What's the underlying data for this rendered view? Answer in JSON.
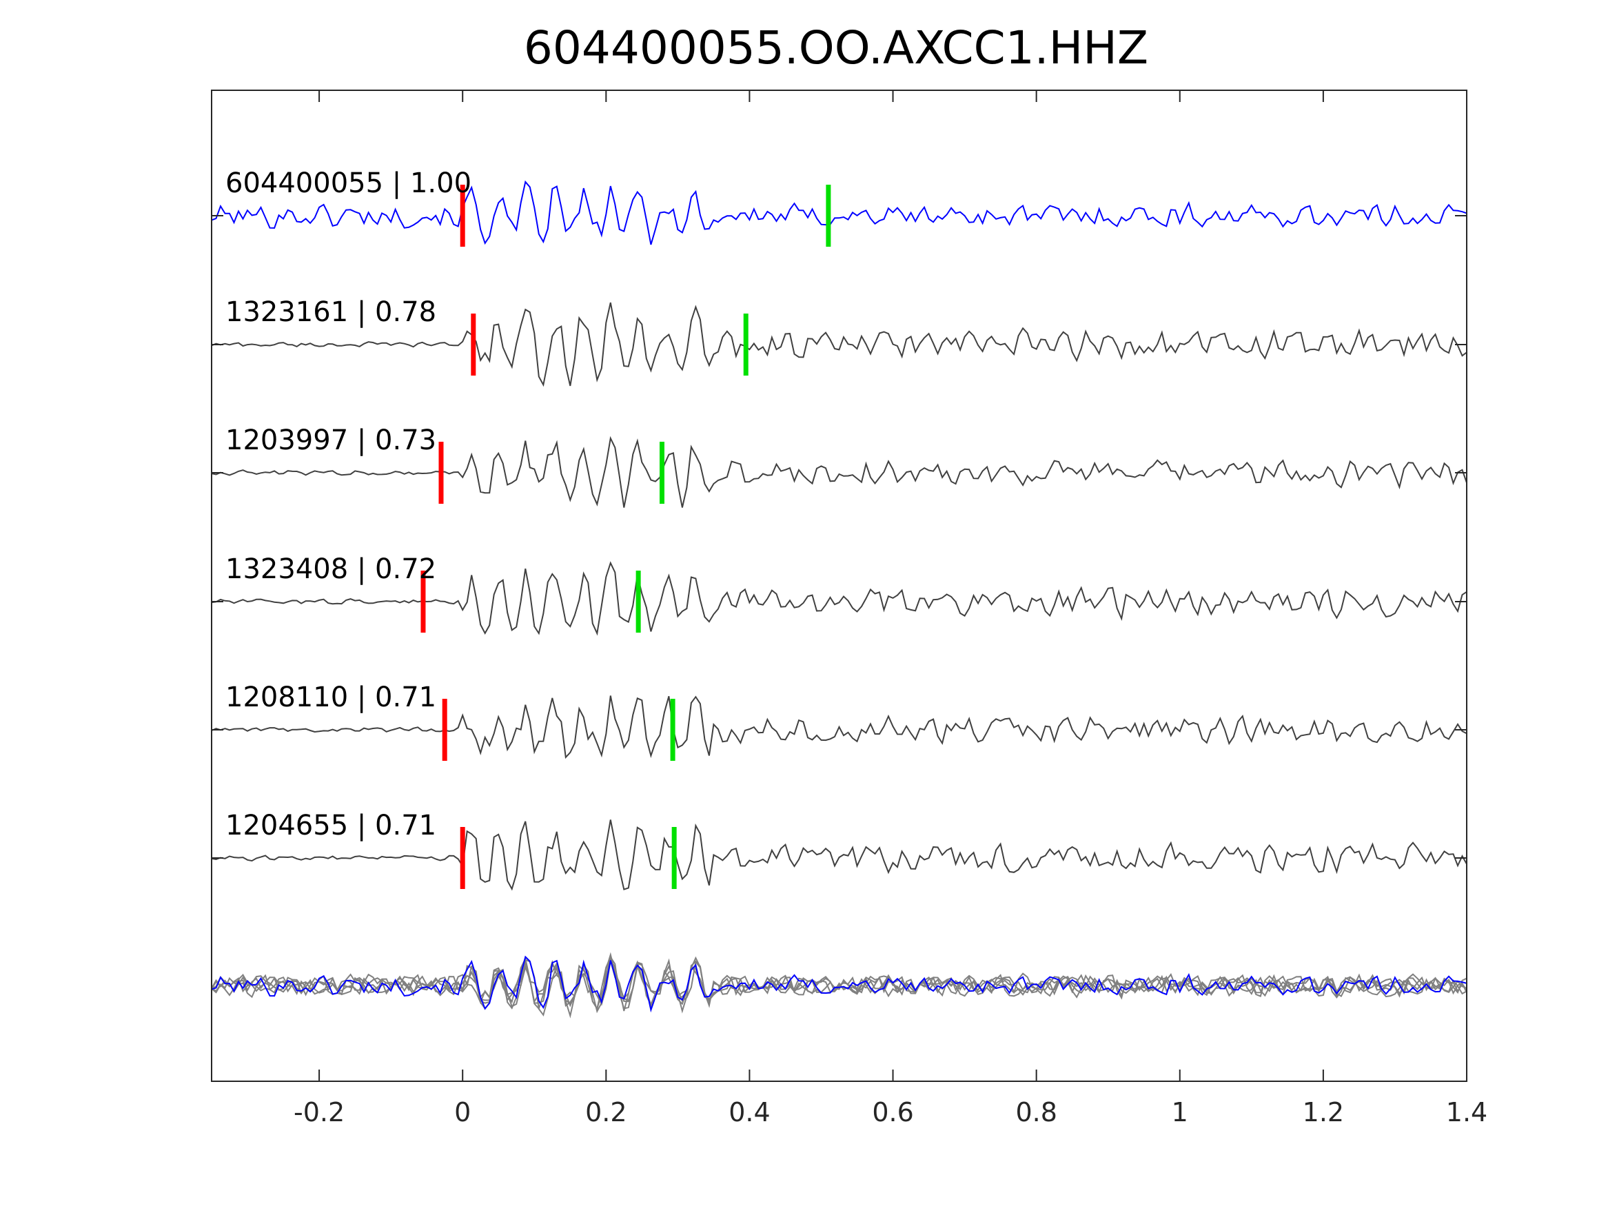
{
  "chart_data": {
    "type": "line",
    "title": "604400055.OO.AXCC1.HHZ",
    "xlabel": "",
    "ylabel": "",
    "xlim": [
      -0.35,
      1.4
    ],
    "x_ticks": [
      -0.2,
      0,
      0.2,
      0.4,
      0.6,
      0.8,
      1,
      1.2,
      1.4
    ],
    "x_tick_labels": [
      "-0.2",
      "0",
      "0.2",
      "0.4",
      "0.6",
      "0.8",
      "1",
      "1.2",
      "1.4"
    ],
    "y_ticks_visible": false,
    "grid": false,
    "colors": {
      "template": "#0000ff",
      "neighbor": "#404040",
      "overlay_neighbor": "#808080",
      "p_pick": "#ff0000",
      "s_pick": "#00e000"
    },
    "series": [
      {
        "name": "604400055 | 1.00",
        "p_pick": 0.0,
        "s_pick": 0.51
      },
      {
        "name": "1323161 | 0.78",
        "p_pick": 0.015,
        "s_pick": 0.395
      },
      {
        "name": "1203997 | 0.73",
        "p_pick": -0.03,
        "s_pick": 0.278
      },
      {
        "name": "1323408 | 0.72",
        "p_pick": -0.055,
        "s_pick": 0.245
      },
      {
        "name": "1208110 | 0.71",
        "p_pick": -0.025,
        "s_pick": 0.293
      },
      {
        "name": "1204655 | 0.71",
        "p_pick": 0.0,
        "s_pick": 0.295
      }
    ],
    "overlay": "all traces superimposed, aligned"
  }
}
